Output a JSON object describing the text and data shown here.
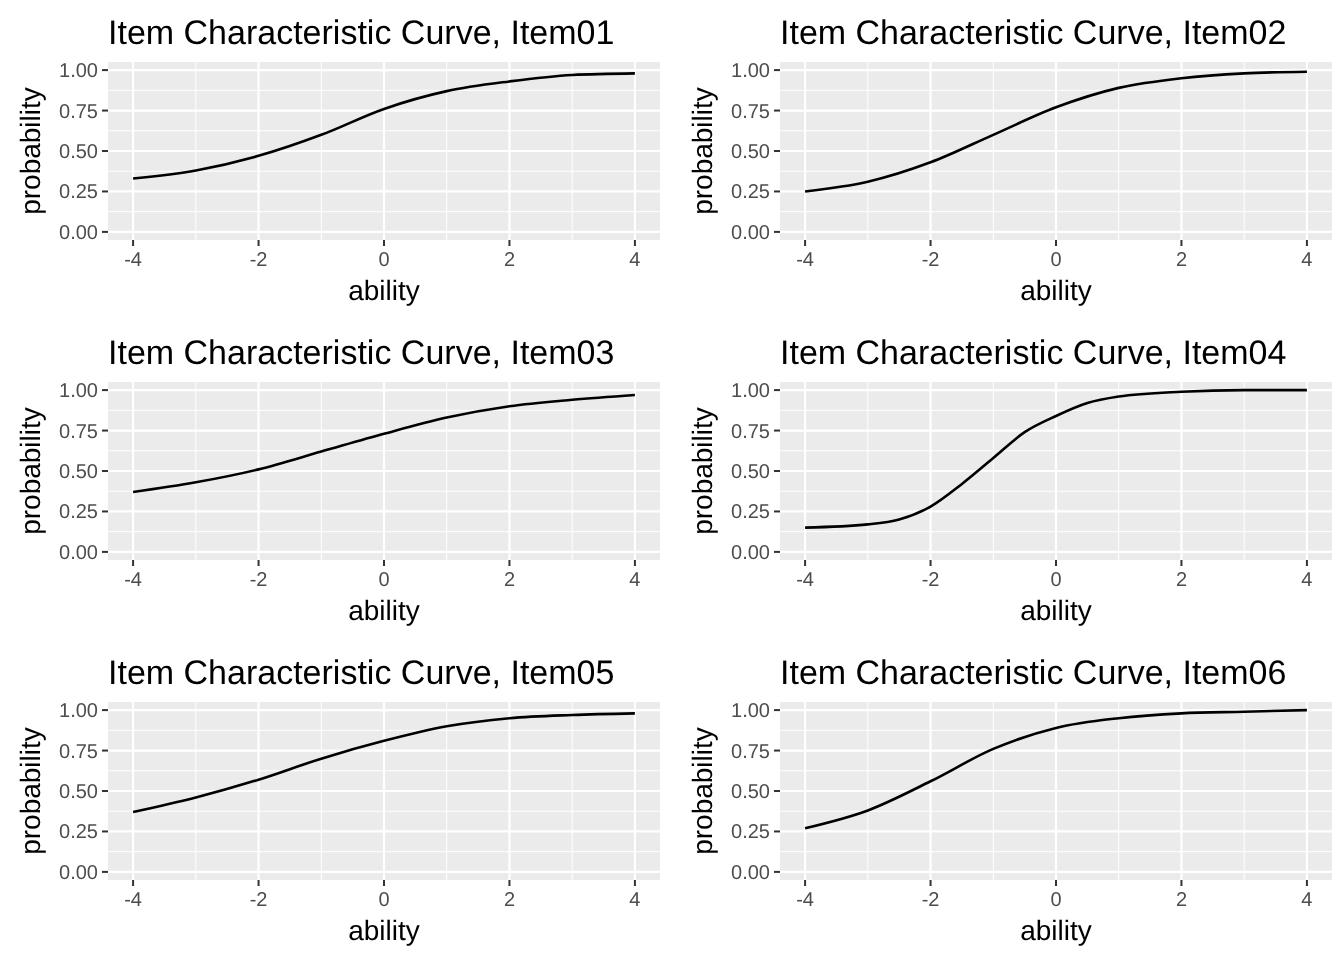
{
  "chart_data": [
    {
      "type": "line",
      "title": "Item Characteristic Curve, Item01",
      "xlabel": "ability",
      "ylabel": "probability",
      "xlim": [
        -4.4,
        4.4
      ],
      "ylim": [
        -0.05,
        1.05
      ],
      "xticks": [
        -4,
        -2,
        0,
        2,
        4
      ],
      "yticks": [
        {
          "value": 0,
          "label": "0.00"
        },
        {
          "value": 0.25,
          "label": "0.25"
        },
        {
          "value": 0.5,
          "label": "0.50"
        },
        {
          "value": 0.75,
          "label": "0.75"
        },
        {
          "value": 1,
          "label": "1.00"
        }
      ],
      "grid": true,
      "x": [
        -4,
        -3,
        -2,
        -1,
        0,
        1,
        2,
        3,
        4
      ],
      "series": [
        {
          "color": "#000000",
          "values": [
            0.33,
            0.38,
            0.47,
            0.6,
            0.76,
            0.87,
            0.93,
            0.97,
            0.98
          ]
        }
      ]
    },
    {
      "type": "line",
      "title": "Item Characteristic Curve, Item02",
      "xlabel": "ability",
      "ylabel": "probability",
      "xlim": [
        -4.4,
        4.4
      ],
      "ylim": [
        -0.05,
        1.05
      ],
      "xticks": [
        -4,
        -2,
        0,
        2,
        4
      ],
      "yticks": [
        {
          "value": 0,
          "label": "0.00"
        },
        {
          "value": 0.25,
          "label": "0.25"
        },
        {
          "value": 0.5,
          "label": "0.50"
        },
        {
          "value": 0.75,
          "label": "0.75"
        },
        {
          "value": 1,
          "label": "1.00"
        }
      ],
      "grid": true,
      "x": [
        -4,
        -3,
        -2,
        -1,
        0,
        1,
        2,
        3,
        4
      ],
      "series": [
        {
          "color": "#000000",
          "values": [
            0.25,
            0.31,
            0.43,
            0.6,
            0.77,
            0.89,
            0.95,
            0.98,
            0.99
          ]
        }
      ]
    },
    {
      "type": "line",
      "title": "Item Characteristic Curve, Item03",
      "xlabel": "ability",
      "ylabel": "probability",
      "xlim": [
        -4.4,
        4.4
      ],
      "ylim": [
        -0.05,
        1.05
      ],
      "xticks": [
        -4,
        -2,
        0,
        2,
        4
      ],
      "yticks": [
        {
          "value": 0,
          "label": "0.00"
        },
        {
          "value": 0.25,
          "label": "0.25"
        },
        {
          "value": 0.5,
          "label": "0.50"
        },
        {
          "value": 0.75,
          "label": "0.75"
        },
        {
          "value": 1,
          "label": "1.00"
        }
      ],
      "grid": true,
      "x": [
        -4,
        -3,
        -2,
        -1,
        0,
        1,
        2,
        3,
        4
      ],
      "series": [
        {
          "color": "#000000",
          "values": [
            0.37,
            0.43,
            0.51,
            0.62,
            0.73,
            0.83,
            0.9,
            0.94,
            0.97
          ]
        }
      ]
    },
    {
      "type": "line",
      "title": "Item Characteristic Curve, Item04",
      "xlabel": "ability",
      "ylabel": "probability",
      "xlim": [
        -4.4,
        4.4
      ],
      "ylim": [
        -0.05,
        1.05
      ],
      "xticks": [
        -4,
        -2,
        0,
        2,
        4
      ],
      "yticks": [
        {
          "value": 0,
          "label": "0.00"
        },
        {
          "value": 0.25,
          "label": "0.25"
        },
        {
          "value": 0.5,
          "label": "0.50"
        },
        {
          "value": 0.75,
          "label": "0.75"
        },
        {
          "value": 1,
          "label": "1.00"
        }
      ],
      "grid": true,
      "x": [
        -4,
        -3,
        -2.5,
        -2,
        -1.5,
        -1,
        -0.5,
        0,
        0.5,
        1,
        2,
        3,
        4
      ],
      "series": [
        {
          "color": "#000000",
          "values": [
            0.15,
            0.17,
            0.2,
            0.28,
            0.42,
            0.58,
            0.74,
            0.84,
            0.92,
            0.96,
            0.99,
            1,
            1
          ]
        }
      ]
    },
    {
      "type": "line",
      "title": "Item Characteristic Curve, Item05",
      "xlabel": "ability",
      "ylabel": "probability",
      "xlim": [
        -4.4,
        4.4
      ],
      "ylim": [
        -0.05,
        1.05
      ],
      "xticks": [
        -4,
        -2,
        0,
        2,
        4
      ],
      "yticks": [
        {
          "value": 0,
          "label": "0.00"
        },
        {
          "value": 0.25,
          "label": "0.25"
        },
        {
          "value": 0.5,
          "label": "0.50"
        },
        {
          "value": 0.75,
          "label": "0.75"
        },
        {
          "value": 1,
          "label": "1.00"
        }
      ],
      "grid": true,
      "x": [
        -4,
        -3,
        -2,
        -1,
        0,
        1,
        2,
        3,
        4
      ],
      "series": [
        {
          "color": "#000000",
          "values": [
            0.37,
            0.46,
            0.57,
            0.7,
            0.81,
            0.9,
            0.95,
            0.97,
            0.98
          ]
        }
      ]
    },
    {
      "type": "line",
      "title": "Item Characteristic Curve, Item06",
      "xlabel": "ability",
      "ylabel": "probability",
      "xlim": [
        -4.4,
        4.4
      ],
      "ylim": [
        -0.05,
        1.05
      ],
      "xticks": [
        -4,
        -2,
        0,
        2,
        4
      ],
      "yticks": [
        {
          "value": 0,
          "label": "0.00"
        },
        {
          "value": 0.25,
          "label": "0.25"
        },
        {
          "value": 0.5,
          "label": "0.50"
        },
        {
          "value": 0.75,
          "label": "0.75"
        },
        {
          "value": 1,
          "label": "1.00"
        }
      ],
      "grid": true,
      "x": [
        -4,
        -3,
        -2,
        -1,
        0,
        1,
        2,
        3,
        4
      ],
      "series": [
        {
          "color": "#000000",
          "values": [
            0.27,
            0.38,
            0.56,
            0.76,
            0.89,
            0.95,
            0.98,
            0.99,
            1
          ]
        }
      ]
    }
  ]
}
